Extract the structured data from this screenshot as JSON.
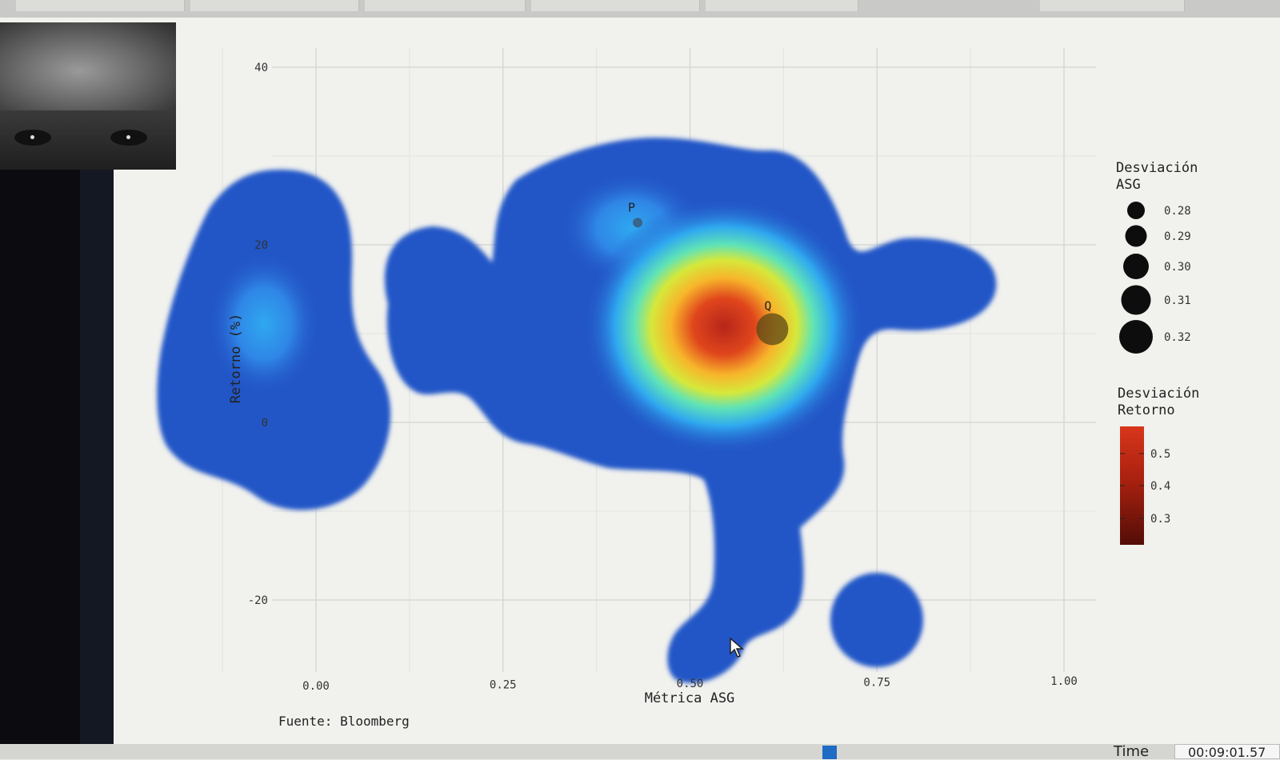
{
  "footer": {
    "time_label": "Time",
    "time_value": "00:09:01.57"
  },
  "chart_data": {
    "type": "heatmap",
    "title": "",
    "xlabel": "Métrica ASG",
    "ylabel": "Retorno (%)",
    "caption": "Fuente: Bloomberg",
    "xlim": [
      -0.18,
      1.05
    ],
    "ylim": [
      -30,
      45
    ],
    "x_ticks": [
      "0.00",
      "0.25",
      "0.50",
      "0.75",
      "1.00"
    ],
    "y_ticks": [
      "40",
      "20",
      "0",
      "-20"
    ],
    "grid": true,
    "colors": {
      "density_base": "#2457c7",
      "density_peak": "#b6251a",
      "background": "#f1f1ee"
    },
    "points": [
      {
        "label": "P",
        "x": 0.43,
        "y": 22.5,
        "size": 0.28,
        "color": "#3a5a78"
      },
      {
        "label": "Q",
        "x": 0.61,
        "y": 10.5,
        "size": 0.32,
        "color": "#5a4a16"
      }
    ],
    "legend_size": {
      "title_lines": [
        "Desviación",
        "ASG"
      ],
      "entries": [
        "0.28",
        "0.29",
        "0.30",
        "0.31",
        "0.32"
      ],
      "values": [
        0.28,
        0.29,
        0.3,
        0.31,
        0.32
      ]
    },
    "legend_color": {
      "title_lines": [
        "Desviación",
        "Retorno"
      ],
      "entries": [
        "0.5",
        "0.4",
        "0.3"
      ],
      "values": [
        0.5,
        0.4,
        0.3
      ],
      "colors": [
        "#d0301a",
        "#921c10",
        "#5b0e09"
      ]
    },
    "legend_placement": "right"
  }
}
